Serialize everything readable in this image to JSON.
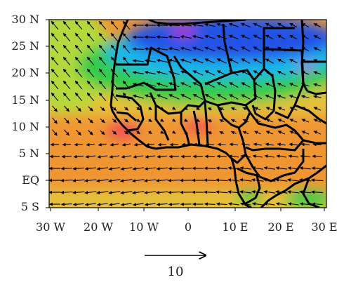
{
  "map": {
    "lon_range": [
      -30,
      30
    ],
    "lat_range": [
      -5,
      30
    ],
    "y_ticks": [
      {
        "lat": 30,
        "label": "30 N"
      },
      {
        "lat": 25,
        "label": "25 N"
      },
      {
        "lat": 20,
        "label": "20 N"
      },
      {
        "lat": 15,
        "label": "15 N"
      },
      {
        "lat": 10,
        "label": "10 N"
      },
      {
        "lat": 5,
        "label": "5 N"
      },
      {
        "lat": 0,
        "label": "EQ"
      },
      {
        "lat": -5,
        "label": "5 S"
      }
    ],
    "x_ticks": [
      {
        "lon": -30,
        "label": "30 W"
      },
      {
        "lon": -20,
        "label": "20 W"
      },
      {
        "lon": -10,
        "label": "10 W"
      },
      {
        "lon": 0,
        "label": "0"
      },
      {
        "lon": 10,
        "label": "10 E"
      },
      {
        "lon": 20,
        "label": "20 E"
      },
      {
        "lon": 30,
        "label": "30 E"
      }
    ],
    "colors": {
      "purple": "#b329d6",
      "blue": "#2452e6",
      "cyan": "#1fb8e8",
      "green": "#33cc4a",
      "yellow_green": "#b3d93a",
      "yellow": "#e6c13a",
      "orange": "#ef9633",
      "deep_orange": "#f08b2e",
      "red": "#f04a55",
      "coast": "#000000"
    }
  },
  "reference_vector": {
    "value": 10,
    "label": "10"
  }
}
